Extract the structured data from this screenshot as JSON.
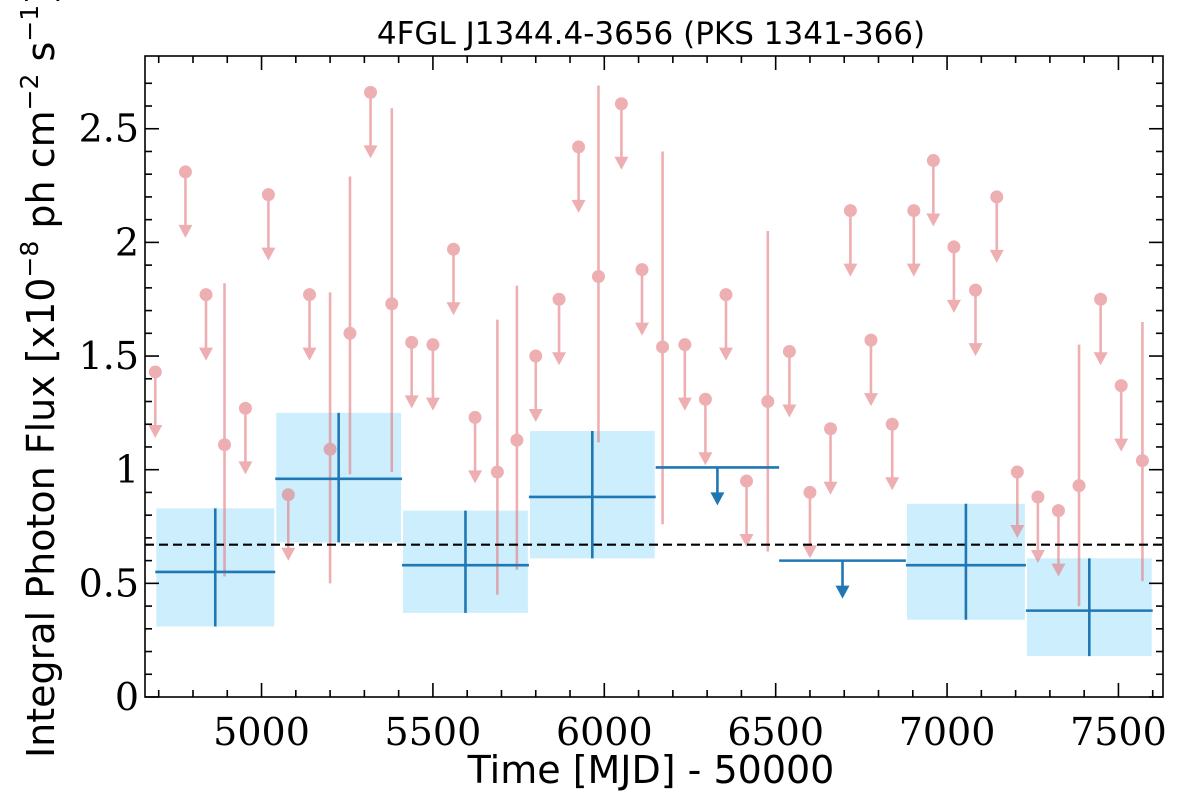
{
  "chart_data": {
    "type": "scatter",
    "title": "4FGL J1344.4-3656 (PKS 1341-366)",
    "xlabel": "Time [MJD] - 50000",
    "ylabel": {
      "prefix": "Integral Photon Flux [x10",
      "exp1": "−8",
      "mid": " ph cm",
      "exp2": "−2",
      "mid2": " s",
      "exp3": "−1",
      "suffix": "]"
    },
    "xlim": [
      4660,
      7630
    ],
    "ylim": [
      0,
      2.82
    ],
    "xticks": [
      5000,
      5500,
      6000,
      6500,
      7000,
      7500
    ],
    "xtick_labels": [
      "5000",
      "5500",
      "6000",
      "6500",
      "7000",
      "7500"
    ],
    "yticks": [
      0,
      0.5,
      1,
      1.5,
      2,
      2.5
    ],
    "ytick_labels": [
      "0",
      "0.5",
      "1",
      "1.5",
      "2",
      "2.5"
    ],
    "reference_line": {
      "y": 0.67,
      "style": "dashed"
    },
    "grid": false,
    "colors": {
      "short_bins": "#e37b7f",
      "long_bins": "#1f77b4",
      "band": "#cdeefc",
      "reference": "#000000"
    },
    "short_bins_detections": [
      {
        "x": 4892,
        "y": 1.11,
        "ylo": 0.53,
        "yhi": 1.82
      },
      {
        "x": 5200,
        "y": 1.09,
        "ylo": 0.5,
        "yhi": 1.78
      },
      {
        "x": 5258,
        "y": 1.6,
        "ylo": 0.98,
        "yhi": 2.29
      },
      {
        "x": 5380,
        "y": 1.73,
        "ylo": 0.99,
        "yhi": 2.59
      },
      {
        "x": 5688,
        "y": 0.99,
        "ylo": 0.45,
        "yhi": 1.66
      },
      {
        "x": 5745,
        "y": 1.13,
        "ylo": 0.56,
        "yhi": 1.81
      },
      {
        "x": 5983,
        "y": 1.85,
        "ylo": 1.12,
        "yhi": 2.69
      },
      {
        "x": 6170,
        "y": 1.54,
        "ylo": 0.76,
        "yhi": 2.4
      },
      {
        "x": 6477,
        "y": 1.3,
        "ylo": 0.64,
        "yhi": 2.05
      },
      {
        "x": 7385,
        "y": 0.93,
        "ylo": 0.4,
        "yhi": 1.55
      },
      {
        "x": 7570,
        "y": 1.04,
        "ylo": 0.51,
        "yhi": 1.65
      }
    ],
    "short_bins_upper_limits": [
      {
        "x": 4690,
        "y": 1.43
      },
      {
        "x": 4778,
        "y": 2.31
      },
      {
        "x": 4838,
        "y": 1.77
      },
      {
        "x": 4953,
        "y": 1.27
      },
      {
        "x": 5020,
        "y": 2.21
      },
      {
        "x": 5078,
        "y": 0.89
      },
      {
        "x": 5140,
        "y": 1.77
      },
      {
        "x": 5318,
        "y": 2.66
      },
      {
        "x": 5438,
        "y": 1.56
      },
      {
        "x": 5500,
        "y": 1.55
      },
      {
        "x": 5560,
        "y": 1.97
      },
      {
        "x": 5623,
        "y": 1.23
      },
      {
        "x": 5800,
        "y": 1.5
      },
      {
        "x": 5868,
        "y": 1.75
      },
      {
        "x": 5925,
        "y": 2.42
      },
      {
        "x": 6050,
        "y": 2.61
      },
      {
        "x": 6110,
        "y": 1.88
      },
      {
        "x": 6235,
        "y": 1.55
      },
      {
        "x": 6295,
        "y": 1.31
      },
      {
        "x": 6355,
        "y": 1.77
      },
      {
        "x": 6415,
        "y": 0.95
      },
      {
        "x": 6540,
        "y": 1.52
      },
      {
        "x": 6600,
        "y": 0.9
      },
      {
        "x": 6660,
        "y": 1.18
      },
      {
        "x": 6718,
        "y": 2.14
      },
      {
        "x": 6778,
        "y": 1.57
      },
      {
        "x": 6840,
        "y": 1.2
      },
      {
        "x": 6903,
        "y": 2.14
      },
      {
        "x": 6960,
        "y": 2.36
      },
      {
        "x": 7020,
        "y": 1.98
      },
      {
        "x": 7083,
        "y": 1.79
      },
      {
        "x": 7145,
        "y": 2.2
      },
      {
        "x": 7205,
        "y": 0.99
      },
      {
        "x": 7265,
        "y": 0.88
      },
      {
        "x": 7325,
        "y": 0.82
      },
      {
        "x": 7448,
        "y": 1.75
      },
      {
        "x": 7508,
        "y": 1.37
      }
    ],
    "long_bins_detections": [
      {
        "x0": 4690,
        "x1": 5040,
        "y": 0.55,
        "ylo": 0.31,
        "yhi": 0.83
      },
      {
        "x0": 5040,
        "x1": 5410,
        "y": 0.96,
        "ylo": 0.68,
        "yhi": 1.25
      },
      {
        "x0": 5410,
        "x1": 5780,
        "y": 0.58,
        "ylo": 0.37,
        "yhi": 0.82
      },
      {
        "x0": 5780,
        "x1": 6150,
        "y": 0.88,
        "ylo": 0.61,
        "yhi": 1.17
      },
      {
        "x0": 6880,
        "x1": 7230,
        "y": 0.58,
        "ylo": 0.34,
        "yhi": 0.85
      },
      {
        "x0": 7230,
        "x1": 7600,
        "y": 0.38,
        "ylo": 0.18,
        "yhi": 0.61
      }
    ],
    "long_bins_upper_limits": [
      {
        "x0": 6150,
        "x1": 6510,
        "y": 1.01
      },
      {
        "x0": 6510,
        "x1": 6880,
        "y": 0.6
      }
    ]
  }
}
